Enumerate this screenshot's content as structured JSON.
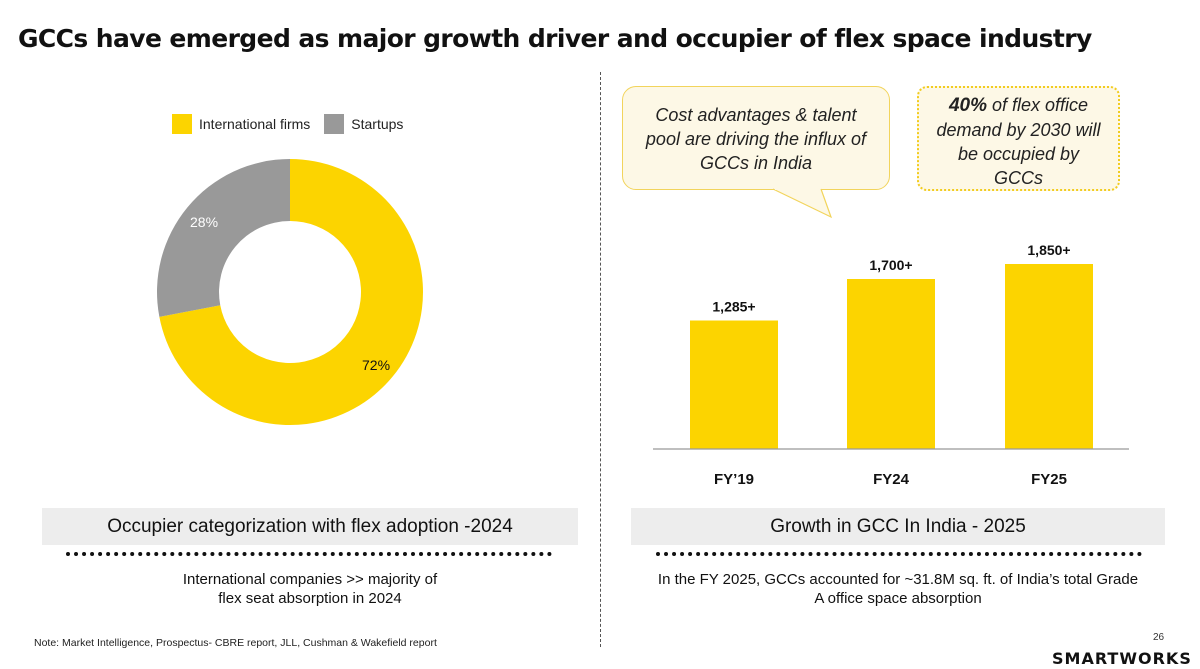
{
  "title": "GCCs have emerged as major growth driver and occupier of flex space industry",
  "left_panel": {
    "caption": "Occupier categorization with flex adoption -2024",
    "subtext_line1": "International companies >> majority of",
    "subtext_line2": "flex seat absorption in 2024"
  },
  "right_panel": {
    "caption": "Growth in GCC In India - 2025",
    "subtext_line1": "In the FY 2025, GCCs accounted for ~31.8M sq. ft. of India’s total Grade",
    "subtext_line2": "A office space absorption",
    "bubble1": {
      "line1": "Cost advantages & talent",
      "line2": "pool are driving the influx of",
      "line3": "GCCs in India"
    },
    "bubble2": {
      "highlight": "40%",
      "line1_rest": " of flex office",
      "line2": "demand by 2030 will",
      "line3": "be occupied by",
      "line4": "GCCs"
    }
  },
  "colors": {
    "yellow": "#fcd400",
    "grey": "#999999",
    "text": "#111111"
  },
  "chart_data": [
    {
      "type": "pie",
      "subtype": "donut",
      "title": "Occupier categorization with flex adoption -2024",
      "legend": [
        "International firms",
        "Startups"
      ],
      "legend_position": "top",
      "slices": [
        {
          "label": "International firms",
          "value": 72,
          "display": "72%",
          "color": "#fcd400"
        },
        {
          "label": "Startups",
          "value": 28,
          "display": "28%",
          "color": "#999999"
        }
      ]
    },
    {
      "type": "bar",
      "title": "Growth in GCC In India - 2025",
      "categories": [
        "FY’19",
        "FY24",
        "FY25"
      ],
      "values": [
        1285,
        1700,
        1850
      ],
      "value_labels": [
        "1,285+",
        "1,700+",
        "1,850+"
      ],
      "ylim": [
        0,
        2000
      ],
      "color": "#fcd400",
      "grid": false,
      "xlabel": "",
      "ylabel": ""
    }
  ],
  "footer": {
    "note": "Note: Market Intelligence, Prospectus- CBRE report, JLL, Cushman & Wakefield report",
    "page_number": "26",
    "brand": "SMARTWORKS"
  }
}
